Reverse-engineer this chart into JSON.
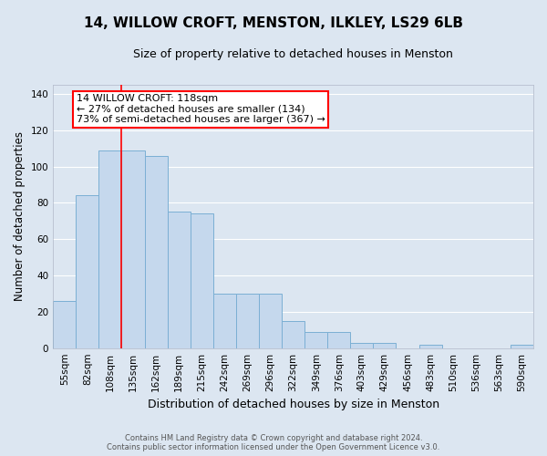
{
  "title_line1": "14, WILLOW CROFT, MENSTON, ILKLEY, LS29 6LB",
  "title_line2": "Size of property relative to detached houses in Menston",
  "xlabel": "Distribution of detached houses by size in Menston",
  "ylabel": "Number of detached properties",
  "footer_line1": "Contains HM Land Registry data © Crown copyright and database right 2024.",
  "footer_line2": "Contains public sector information licensed under the Open Government Licence v3.0.",
  "bar_labels": [
    "55sqm",
    "82sqm",
    "108sqm",
    "135sqm",
    "162sqm",
    "189sqm",
    "215sqm",
    "242sqm",
    "269sqm",
    "296sqm",
    "322sqm",
    "349sqm",
    "376sqm",
    "403sqm",
    "429sqm",
    "456sqm",
    "483sqm",
    "510sqm",
    "536sqm",
    "563sqm",
    "590sqm"
  ],
  "bar_values": [
    26,
    84,
    109,
    109,
    106,
    75,
    74,
    30,
    30,
    30,
    15,
    9,
    9,
    3,
    3,
    0,
    2,
    0,
    0,
    0,
    2
  ],
  "bar_color": "#c5d8ed",
  "bar_edge_color": "#7bafd4",
  "ylim": [
    0,
    145
  ],
  "yticks": [
    0,
    20,
    40,
    60,
    80,
    100,
    120,
    140
  ],
  "red_line_x": 2.5,
  "annotation_text_line1": "14 WILLOW CROFT: 118sqm",
  "annotation_text_line2": "← 27% of detached houses are smaller (134)",
  "annotation_text_line3": "73% of semi-detached houses are larger (367) →",
  "bg_color": "#dce6f1",
  "plot_bg_color": "#dce6f1",
  "grid_color": "#ffffff",
  "title_fontsize": 11,
  "subtitle_fontsize": 9,
  "tick_fontsize": 7.5,
  "ylabel_fontsize": 8.5,
  "xlabel_fontsize": 9,
  "footer_fontsize": 6,
  "ann_fontsize": 8
}
